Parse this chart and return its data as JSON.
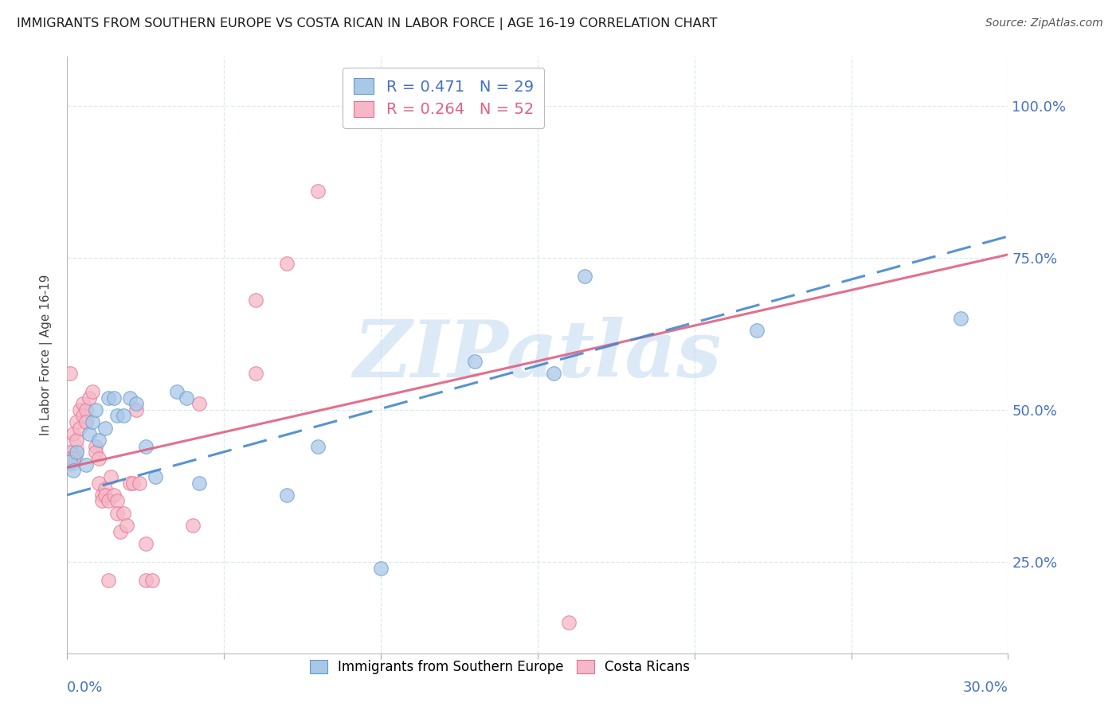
{
  "title": "IMMIGRANTS FROM SOUTHERN EUROPE VS COSTA RICAN IN LABOR FORCE | AGE 16-19 CORRELATION CHART",
  "source": "Source: ZipAtlas.com",
  "ylabel": "In Labor Force | Age 16-19",
  "legend_blue_text": "R = 0.471   N = 29",
  "legend_pink_text": "R = 0.264   N = 52",
  "legend_label_blue": "Immigrants from Southern Europe",
  "legend_label_pink": "Costa Ricans",
  "watermark": "ZIPatlas",
  "blue_color": "#a8c8e8",
  "blue_edge": "#6699cc",
  "pink_color": "#f4b8c8",
  "pink_edge": "#e87090",
  "trend_blue_color": "#4488cc",
  "trend_pink_color": "#e06080",
  "axis_color": "#4472c4",
  "grid_color": "#dde8f0",
  "blue_scatter_x": [
    0.001,
    0.002,
    0.003,
    0.006,
    0.007,
    0.008,
    0.009,
    0.01,
    0.012,
    0.013,
    0.015,
    0.016,
    0.018,
    0.02,
    0.022,
    0.025,
    0.028,
    0.035,
    0.038,
    0.042,
    0.07,
    0.08,
    0.1,
    0.13,
    0.155,
    0.165,
    0.22,
    0.285
  ],
  "blue_scatter_y": [
    0.415,
    0.4,
    0.43,
    0.41,
    0.46,
    0.48,
    0.5,
    0.45,
    0.47,
    0.52,
    0.52,
    0.49,
    0.49,
    0.52,
    0.51,
    0.44,
    0.39,
    0.53,
    0.52,
    0.38,
    0.36,
    0.44,
    0.24,
    0.58,
    0.56,
    0.72,
    0.63,
    0.65
  ],
  "pink_scatter_x": [
    0.001,
    0.001,
    0.001,
    0.002,
    0.002,
    0.003,
    0.003,
    0.004,
    0.004,
    0.005,
    0.005,
    0.006,
    0.006,
    0.007,
    0.008,
    0.009,
    0.009,
    0.01,
    0.01,
    0.011,
    0.011,
    0.012,
    0.012,
    0.013,
    0.013,
    0.014,
    0.015,
    0.016,
    0.016,
    0.017,
    0.018,
    0.019,
    0.02,
    0.021,
    0.022,
    0.023,
    0.025,
    0.025,
    0.027,
    0.04,
    0.042,
    0.06,
    0.06,
    0.07,
    0.08,
    0.1,
    0.16
  ],
  "pink_scatter_y": [
    0.43,
    0.56,
    0.42,
    0.46,
    0.42,
    0.45,
    0.48,
    0.47,
    0.5,
    0.51,
    0.49,
    0.5,
    0.48,
    0.52,
    0.53,
    0.44,
    0.43,
    0.42,
    0.38,
    0.36,
    0.35,
    0.37,
    0.36,
    0.35,
    0.22,
    0.39,
    0.36,
    0.35,
    0.33,
    0.3,
    0.33,
    0.31,
    0.38,
    0.38,
    0.5,
    0.38,
    0.28,
    0.22,
    0.22,
    0.31,
    0.51,
    0.56,
    0.68,
    0.74,
    0.86,
    1.0,
    0.15
  ],
  "xlim": [
    0.0,
    0.3
  ],
  "ylim": [
    0.1,
    1.08
  ],
  "yticks": [
    0.25,
    0.5,
    0.75,
    1.0
  ],
  "ytick_labels": [
    "25.0%",
    "50.0%",
    "75.0%",
    "100.0%"
  ],
  "xticks": [
    0.0,
    0.05,
    0.1,
    0.15,
    0.2,
    0.25,
    0.3
  ],
  "blue_trend_x": [
    0.0,
    0.3
  ],
  "blue_trend_y": [
    0.36,
    0.785
  ],
  "pink_trend_x": [
    0.0,
    0.3
  ],
  "pink_trend_y": [
    0.405,
    0.755
  ]
}
